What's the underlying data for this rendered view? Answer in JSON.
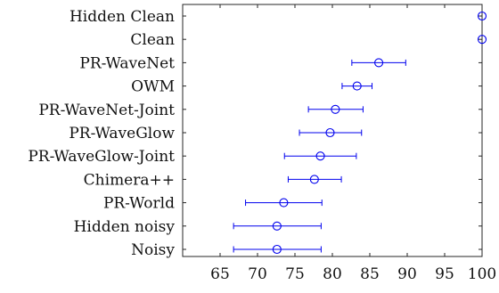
{
  "chart_data": {
    "type": "scatter",
    "orientation": "horizontal",
    "error_bars": true,
    "categories": [
      "Hidden Clean",
      "Clean",
      "PR-WaveNet",
      "OWM",
      "PR-WaveNet-Joint",
      "PR-WaveGlow",
      "PR-WaveGlow-Joint",
      "Chimera++",
      "PR-World",
      "Hidden noisy",
      "Noisy"
    ],
    "values": [
      100,
      100,
      86.2,
      83.3,
      80.4,
      79.7,
      78.4,
      77.6,
      73.5,
      72.6,
      72.6
    ],
    "error_low": [
      100,
      100,
      82.6,
      81.3,
      76.8,
      75.6,
      73.6,
      74.1,
      68.4,
      66.8,
      66.8
    ],
    "error_high": [
      100,
      100,
      89.8,
      85.3,
      84.1,
      83.9,
      83.2,
      81.2,
      78.6,
      78.5,
      78.5
    ],
    "xticks": [
      65,
      70,
      75,
      80,
      85,
      90,
      95,
      100
    ],
    "xlim": [
      60,
      100
    ],
    "title": "",
    "xlabel": "",
    "ylabel": "",
    "grid": false,
    "marker": "open-circle",
    "color": "#0000ee",
    "axis_color": "#262626"
  }
}
